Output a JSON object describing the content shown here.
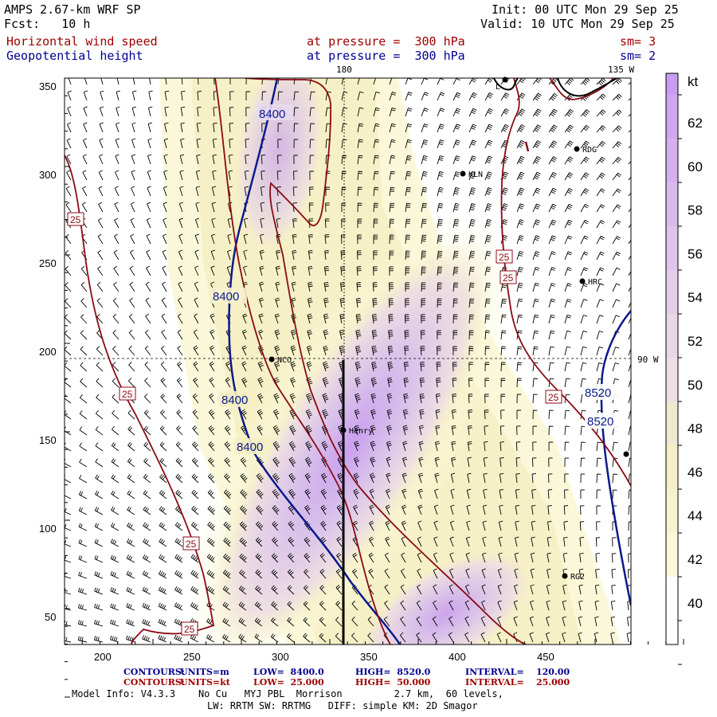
{
  "header": {
    "model": "AMPS 2.67-km WRF SP",
    "fcst": "Fcst:   10 h",
    "init": "Init: 00 UTC Mon 29 Sep 25",
    "valid": "Valid: 10 UTC Mon 29 Sep 25",
    "field1": "Horizontal wind speed",
    "field2": "Geopotential height",
    "level1": "at pressure =  300 hPa",
    "level2": "at pressure =  300 hPa",
    "sm1": "sm= 3",
    "sm2": "sm= 2"
  },
  "map": {
    "lon_labels": [
      "180",
      "135 W",
      "90 W"
    ],
    "x_ticks": [
      "200",
      "250",
      "300",
      "350",
      "400",
      "450"
    ],
    "y_ticks": [
      "350",
      "300",
      "250",
      "200",
      "150",
      "100",
      "50"
    ],
    "stations": [
      "L",
      "RDG",
      "KLN",
      "HRC",
      "NCO",
      "Henry",
      "RG2"
    ],
    "height_contour_labels": [
      "8400",
      "8400",
      "8400",
      "8400",
      "8520",
      "8520"
    ],
    "speed_contour_labels": [
      "25",
      "25",
      "25",
      "25",
      "25",
      "25",
      "25"
    ]
  },
  "colorbar": {
    "unit": "kt",
    "labels": [
      "62",
      "60",
      "58",
      "56",
      "54",
      "52",
      "50",
      "48",
      "46",
      "44",
      "42",
      "40"
    ]
  },
  "footer": {
    "c1_label": "CONTOURS:",
    "c1_units": "UNITS=m",
    "c1_low": "LOW=  8400.0",
    "c1_high": "HIGH=  8520.0",
    "c1_interval": "INTERVAL=    120.00",
    "c2_label": "CONTOURS:",
    "c2_units": "UNITS=kt",
    "c2_low": "LOW=  25.000",
    "c2_high": "HIGH=  50.000",
    "c2_interval": "INTERVAL=    25.000",
    "info1": "Model Info: V4.3.3    No Cu   MYJ PBL  Morrison         2.7 km,  60 levels,",
    "info2": "LW: RRTM SW: RRTMG   DIFF: simple KM: 2D Smagor"
  },
  "colors": {
    "height_contour": "#0a1a8c",
    "speed_contour": "#8b0a14",
    "shade_40": "#fdfde0",
    "shade_44": "#f6f0c4",
    "shade_48": "#eedfe2",
    "shade_54": "#d9c2ec",
    "shade_60": "#c89cf0"
  }
}
